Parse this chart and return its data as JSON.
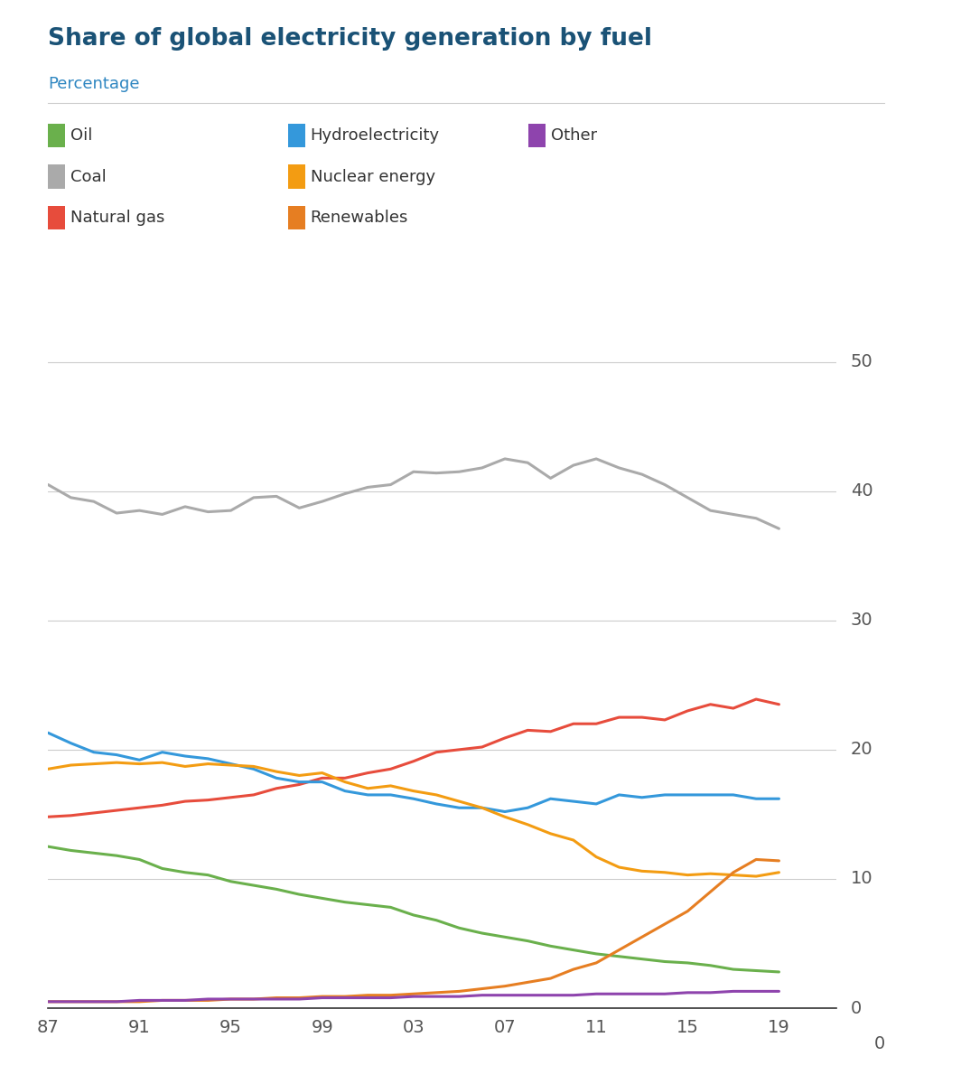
{
  "title": "Share of global electricity generation by fuel",
  "subtitle": "Percentage",
  "title_color": "#1a5276",
  "subtitle_color": "#2e86c1",
  "years": [
    1987,
    1988,
    1989,
    1990,
    1991,
    1992,
    1993,
    1994,
    1995,
    1996,
    1997,
    1998,
    1999,
    2000,
    2001,
    2002,
    2003,
    2004,
    2005,
    2006,
    2007,
    2008,
    2009,
    2010,
    2011,
    2012,
    2013,
    2014,
    2015,
    2016,
    2017,
    2018,
    2019
  ],
  "coal": [
    40.5,
    39.5,
    39.2,
    38.3,
    38.5,
    38.2,
    38.8,
    38.4,
    38.5,
    39.5,
    39.6,
    38.7,
    39.2,
    39.8,
    40.3,
    40.5,
    41.5,
    41.4,
    41.5,
    41.8,
    42.5,
    42.2,
    41.0,
    42.0,
    42.5,
    41.8,
    41.3,
    40.5,
    39.5,
    38.5,
    38.2,
    37.9,
    37.1
  ],
  "natural_gas": [
    14.8,
    14.9,
    15.1,
    15.3,
    15.5,
    15.7,
    16.0,
    16.1,
    16.3,
    16.5,
    17.0,
    17.3,
    17.8,
    17.8,
    18.2,
    18.5,
    19.1,
    19.8,
    20.0,
    20.2,
    20.9,
    21.5,
    21.4,
    22.0,
    22.0,
    22.5,
    22.5,
    22.3,
    23.0,
    23.5,
    23.2,
    23.9,
    23.5
  ],
  "hydro": [
    21.3,
    20.5,
    19.8,
    19.6,
    19.2,
    19.8,
    19.5,
    19.3,
    18.9,
    18.5,
    17.8,
    17.5,
    17.5,
    16.8,
    16.5,
    16.5,
    16.2,
    15.8,
    15.5,
    15.5,
    15.2,
    15.5,
    16.2,
    16.0,
    15.8,
    16.5,
    16.3,
    16.5,
    16.5,
    16.5,
    16.5,
    16.2,
    16.2
  ],
  "nuclear": [
    18.5,
    18.8,
    18.9,
    19.0,
    18.9,
    19.0,
    18.7,
    18.9,
    18.8,
    18.7,
    18.3,
    18.0,
    18.2,
    17.5,
    17.0,
    17.2,
    16.8,
    16.5,
    16.0,
    15.5,
    14.8,
    14.2,
    13.5,
    13.0,
    11.7,
    10.9,
    10.6,
    10.5,
    10.3,
    10.4,
    10.3,
    10.2,
    10.5
  ],
  "oil": [
    12.5,
    12.2,
    12.0,
    11.8,
    11.5,
    10.8,
    10.5,
    10.3,
    9.8,
    9.5,
    9.2,
    8.8,
    8.5,
    8.2,
    8.0,
    7.8,
    7.2,
    6.8,
    6.2,
    5.8,
    5.5,
    5.2,
    4.8,
    4.5,
    4.2,
    4.0,
    3.8,
    3.6,
    3.5,
    3.3,
    3.0,
    2.9,
    2.8
  ],
  "renewables": [
    0.5,
    0.5,
    0.5,
    0.5,
    0.5,
    0.6,
    0.6,
    0.6,
    0.7,
    0.7,
    0.8,
    0.8,
    0.9,
    0.9,
    1.0,
    1.0,
    1.1,
    1.2,
    1.3,
    1.5,
    1.7,
    2.0,
    2.3,
    3.0,
    3.5,
    4.5,
    5.5,
    6.5,
    7.5,
    9.0,
    10.5,
    11.5,
    11.4
  ],
  "other": [
    0.5,
    0.5,
    0.5,
    0.5,
    0.6,
    0.6,
    0.6,
    0.7,
    0.7,
    0.7,
    0.7,
    0.7,
    0.8,
    0.8,
    0.8,
    0.8,
    0.9,
    0.9,
    0.9,
    1.0,
    1.0,
    1.0,
    1.0,
    1.0,
    1.1,
    1.1,
    1.1,
    1.1,
    1.2,
    1.2,
    1.3,
    1.3,
    1.3
  ],
  "colors": {
    "oil": "#6ab04c",
    "coal": "#aaaaaa",
    "natural_gas": "#e74c3c",
    "hydro": "#3498db",
    "nuclear": "#f39c12",
    "renewables": "#e67e22",
    "other": "#8e44ad"
  },
  "yticks": [
    0,
    10,
    20,
    30,
    40,
    50
  ],
  "xticks": [
    1987,
    1991,
    1995,
    1999,
    2003,
    2007,
    2011,
    2015,
    2019
  ],
  "xlabels": [
    "87",
    "91",
    "95",
    "99",
    "03",
    "07",
    "11",
    "15",
    "19"
  ],
  "background_color": "#ffffff",
  "line_width": 2.2
}
